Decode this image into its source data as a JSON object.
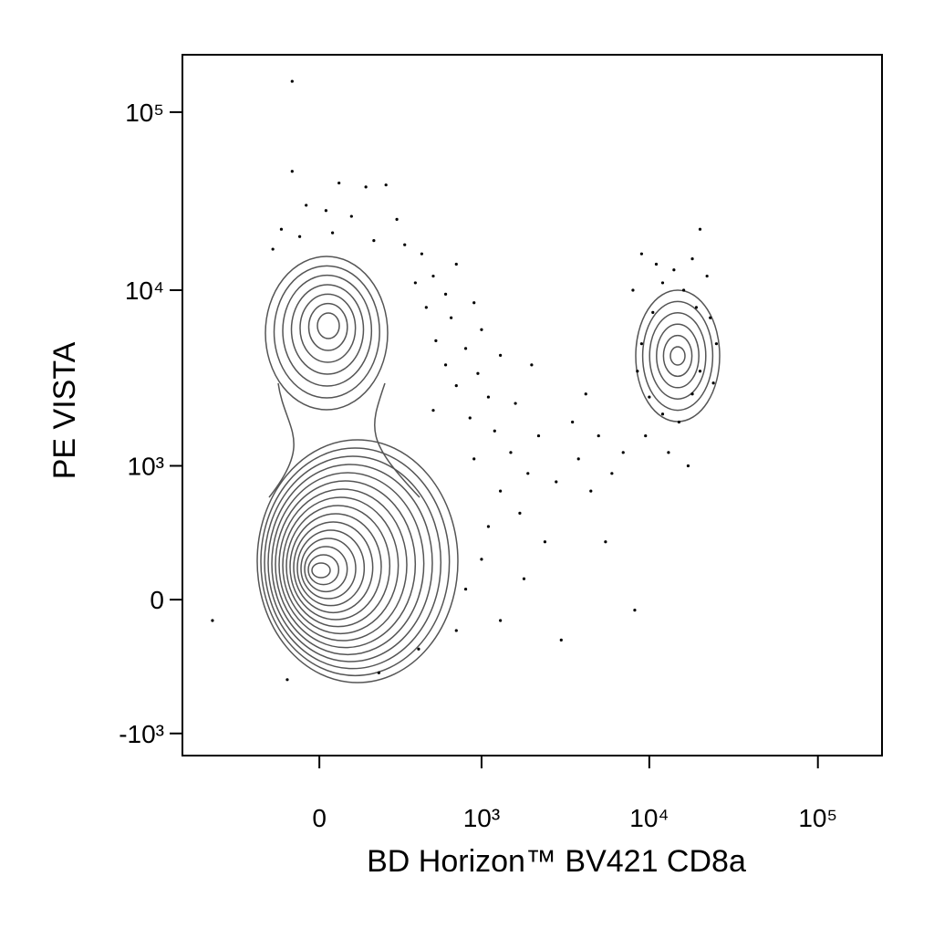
{
  "chart_data": {
    "type": "scatter",
    "xlabel": "BD Horizon™  BV421   CD8a",
    "ylabel": "PE  VISTA",
    "color": "#000000",
    "transform": "biexponential",
    "xlim": [
      -700,
      240000
    ],
    "ylim": [
      -1350,
      210000
    ],
    "xticks": [
      0,
      {
        "value": 1000,
        "label": "10³"
      },
      {
        "value": 10000,
        "label": "10⁴"
      },
      {
        "value": 100000,
        "label": "10⁵"
      }
    ],
    "yticks": [
      {
        "value": -1000,
        "label": "-10³"
      },
      0,
      {
        "value": 1000,
        "label": "10³"
      },
      {
        "value": 10000,
        "label": "10⁴"
      },
      {
        "value": 100000,
        "label": "10⁵"
      }
    ],
    "x": [
      -84,
      -84,
      60,
      150,
      230,
      -40,
      20,
      100,
      280,
      -120,
      -60,
      40,
      180,
      320,
      -150,
      420,
      700,
      500,
      380,
      600,
      900,
      450,
      650,
      1000,
      520,
      800,
      1300,
      600,
      950,
      2000,
      700,
      1100,
      1600,
      500,
      850,
      1200,
      2200,
      1500,
      900,
      1900,
      1300,
      2800,
      1700,
      1100,
      2400,
      1000,
      1800,
      800,
      1300,
      700,
      400,
      200,
      -100,
      3000,
      -450,
      3500,
      4200,
      5000,
      3800,
      4500,
      6000,
      5500,
      7000,
      8200,
      9000,
      10500,
      12000,
      14000,
      16000,
      18000,
      20000,
      22000,
      8500,
      10000,
      12000,
      15000,
      18000,
      20000,
      23000,
      9500,
      13000,
      17000,
      11000,
      25000,
      24000,
      19000,
      8000,
      9000
    ],
    "values": [
      149000,
      46500,
      40000,
      38000,
      39000,
      30000,
      28000,
      26000,
      25000,
      22000,
      20000,
      21000,
      19000,
      18000,
      17000,
      16000,
      14000,
      12000,
      11000,
      9500,
      8500,
      8000,
      7000,
      6000,
      5200,
      4700,
      4300,
      3800,
      3400,
      3800,
      2900,
      2500,
      2300,
      2100,
      1900,
      1600,
      1500,
      1200,
      1100,
      900,
      700,
      800,
      500,
      400,
      300,
      200,
      100,
      50,
      -100,
      -150,
      -250,
      -400,
      -450,
      -200,
      -100,
      1800,
      2600,
      1500,
      1100,
      700,
      900,
      300,
      1200,
      -50,
      5000,
      7500,
      11000,
      13000,
      10000,
      15000,
      22000,
      12000,
      3500,
      2500,
      2000,
      1800,
      2600,
      3500,
      7000,
      1500,
      1200,
      1000,
      14000,
      5000,
      3000,
      8000,
      10000,
      16000
    ]
  }
}
